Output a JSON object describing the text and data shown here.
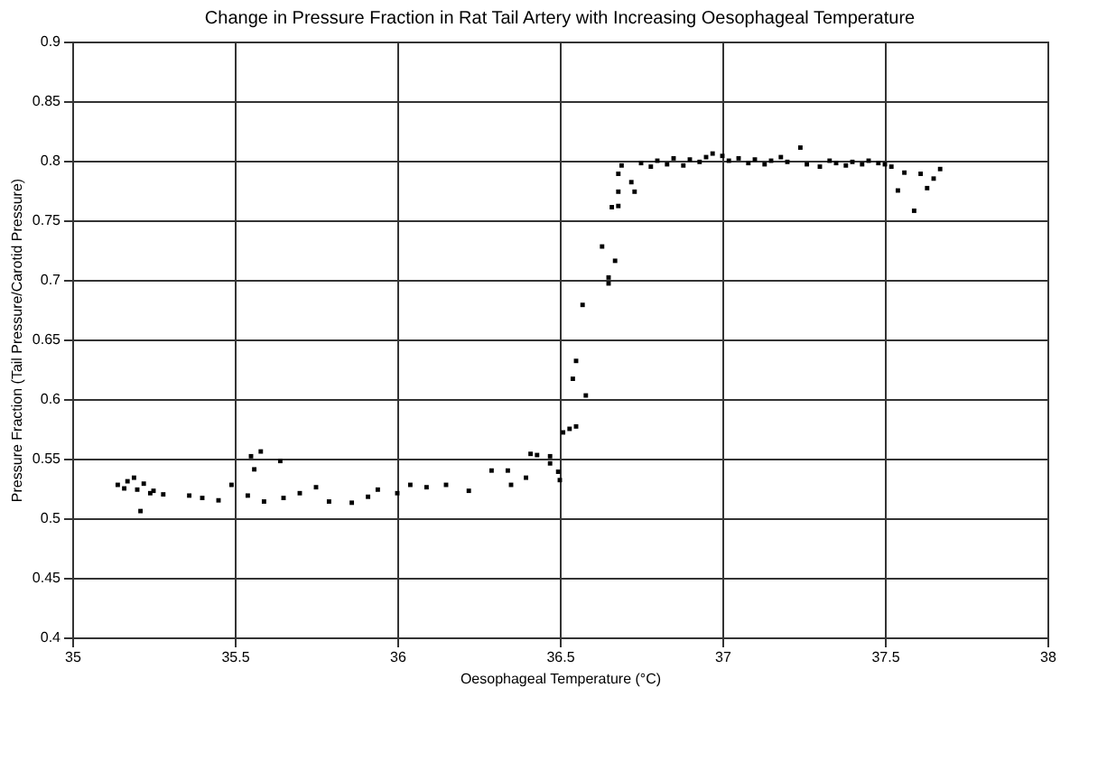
{
  "chart_data": {
    "type": "scatter",
    "title": "Change in Pressure Fraction in Rat Tail Artery with Increasing Oesophageal Temperature",
    "xlabel": "Oesophageal Temperature (°C)",
    "ylabel": "Pressure Fraction (Tail Pressure/Carotid Pressure)",
    "series": [
      {
        "color": "#000000",
        "x": [
          35.14,
          35.17,
          35.19,
          35.2,
          35.21,
          35.24,
          35.28,
          35.16,
          35.22,
          35.25,
          35.36,
          35.4,
          35.45,
          35.49,
          35.54,
          35.55,
          35.56,
          35.58,
          35.59,
          35.64,
          35.65,
          35.7,
          35.75,
          35.79,
          35.86,
          35.91,
          35.94,
          36.0,
          36.04,
          36.09,
          36.15,
          36.22,
          36.29,
          36.34,
          36.35,
          36.396,
          36.41,
          36.43,
          36.47,
          36.47,
          36.495,
          36.5,
          36.51,
          36.53,
          36.55,
          36.54,
          36.55,
          36.58,
          36.57,
          36.63,
          36.65,
          36.65,
          36.67,
          36.66,
          36.68,
          36.68,
          36.68,
          36.69,
          36.72,
          36.73,
          36.75,
          36.78,
          36.8,
          36.83,
          36.85,
          36.88,
          36.9,
          36.93,
          36.95,
          36.97,
          37.0,
          37.02,
          37.05,
          37.08,
          37.1,
          37.13,
          37.15,
          37.18,
          37.2,
          37.24,
          37.26,
          37.3,
          37.33,
          37.35,
          37.38,
          37.4,
          37.43,
          37.45,
          37.48,
          37.5,
          37.52,
          37.54,
          37.56,
          37.59,
          37.61,
          37.63,
          37.65,
          37.67
        ],
        "values": [
          0.528,
          0.531,
          0.534,
          0.524,
          0.506,
          0.521,
          0.52,
          0.525,
          0.529,
          0.523,
          0.519,
          0.517,
          0.515,
          0.528,
          0.519,
          0.552,
          0.541,
          0.556,
          0.514,
          0.548,
          0.517,
          0.521,
          0.526,
          0.514,
          0.513,
          0.518,
          0.524,
          0.521,
          0.528,
          0.526,
          0.528,
          0.523,
          0.54,
          0.54,
          0.528,
          0.534,
          0.554,
          0.553,
          0.546,
          0.552,
          0.539,
          0.532,
          0.572,
          0.575,
          0.577,
          0.617,
          0.632,
          0.603,
          0.679,
          0.728,
          0.702,
          0.697,
          0.716,
          0.761,
          0.762,
          0.774,
          0.789,
          0.796,
          0.782,
          0.774,
          0.798,
          0.795,
          0.8,
          0.797,
          0.802,
          0.796,
          0.801,
          0.799,
          0.803,
          0.806,
          0.804,
          0.8,
          0.802,
          0.798,
          0.801,
          0.797,
          0.8,
          0.803,
          0.799,
          0.811,
          0.797,
          0.795,
          0.8,
          0.798,
          0.796,
          0.799,
          0.797,
          0.8,
          0.798,
          0.797,
          0.795,
          0.775,
          0.79,
          0.758,
          0.789,
          0.777,
          0.785,
          0.793
        ]
      }
    ],
    "xlim": [
      35,
      38
    ],
    "xticks": [
      35,
      35.5,
      36,
      36.5,
      37,
      37.5,
      38
    ],
    "ylim": [
      0.4,
      0.9
    ],
    "yticks": [
      0.4,
      0.45,
      0.5,
      0.55,
      0.6,
      0.65,
      0.7,
      0.75,
      0.8,
      0.85,
      0.9
    ],
    "grid": true,
    "legend": false,
    "marker": "square"
  }
}
